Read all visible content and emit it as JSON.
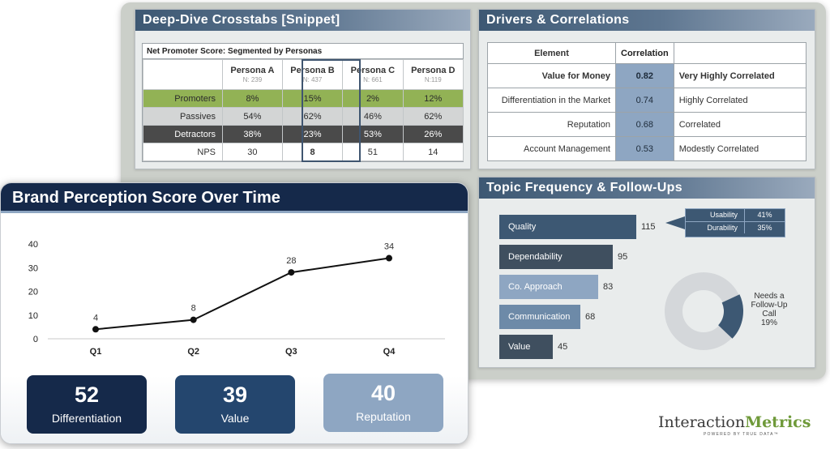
{
  "crosstabs": {
    "title": "Deep-Dive Crosstabs [Snippet]",
    "table_title": "Net Promoter Score: Segmented by Personas",
    "personas": [
      {
        "name": "Persona A",
        "n": "N: 239"
      },
      {
        "name": "Persona B",
        "n": "N: 437"
      },
      {
        "name": "Persona C",
        "n": "N: 661"
      },
      {
        "name": "Persona D",
        "n": "N:119"
      }
    ],
    "rows": [
      {
        "label": "Promoters",
        "values": [
          "8%",
          "15%",
          "2%",
          "12%"
        ]
      },
      {
        "label": "Passives",
        "values": [
          "54%",
          "62%",
          "46%",
          "62%"
        ]
      },
      {
        "label": "Detractors",
        "values": [
          "38%",
          "23%",
          "53%",
          "26%"
        ]
      },
      {
        "label": "NPS",
        "values": [
          "30",
          "8",
          "51",
          "14"
        ]
      }
    ]
  },
  "drivers": {
    "title": "Drivers & Correlations",
    "header_element": "Element",
    "header_correlation": "Correlation",
    "rows": [
      {
        "element": "Value for Money",
        "value": "0.82",
        "desc": "Very Highly Correlated"
      },
      {
        "element": "Differentiation in the Market",
        "value": "0.74",
        "desc": "Highly Correlated"
      },
      {
        "element": "Reputation",
        "value": "0.68",
        "desc": "Correlated"
      },
      {
        "element": "Account Management",
        "value": "0.53",
        "desc": "Modestly Correlated"
      }
    ]
  },
  "topics": {
    "title": "Topic Frequency & Follow-Ups",
    "bars": [
      {
        "label": "Quality",
        "value": 115,
        "color": "#3d5873"
      },
      {
        "label": "Dependability",
        "value": 95,
        "color": "#3f4f5f"
      },
      {
        "label": "Co. Approach",
        "value": 83,
        "color": "#8ea6c2"
      },
      {
        "label": "Communication",
        "value": 68,
        "color": "#6d8aa8"
      },
      {
        "label": "Value",
        "value": 45,
        "color": "#3f4f5f"
      }
    ],
    "callout": [
      {
        "label": "Usability",
        "value": "41%"
      },
      {
        "label": "Durability",
        "value": "35%"
      }
    ],
    "donut": {
      "line1": "Needs a",
      "line2": "Follow-Up",
      "line3": "Call",
      "percent": "19%",
      "fraction": 0.19,
      "color_main": "#3d5873",
      "color_rest": "#d4d7da"
    }
  },
  "brand": {
    "title": "Brand Perception Score Over Time",
    "kpis": [
      {
        "value": "52",
        "label": "Differentiation",
        "color": "#15294a"
      },
      {
        "value": "39",
        "label": "Value",
        "color": "#24466e"
      },
      {
        "value": "40",
        "label": "Reputation",
        "color": "#8ea6c2"
      }
    ]
  },
  "chart_data": {
    "type": "line",
    "categories": [
      "Q1",
      "Q2",
      "Q3",
      "Q4"
    ],
    "values": [
      4,
      8,
      28,
      34
    ],
    "title": "Brand Perception Score Over Time",
    "xlabel": "",
    "ylabel": "",
    "ylim": [
      0,
      40
    ],
    "yticks": [
      0,
      10,
      20,
      30,
      40
    ],
    "grid": false
  },
  "logo": {
    "word1": "Interaction",
    "word2": "Metrics",
    "tagline": "POWERED BY TRUE DATA™"
  }
}
